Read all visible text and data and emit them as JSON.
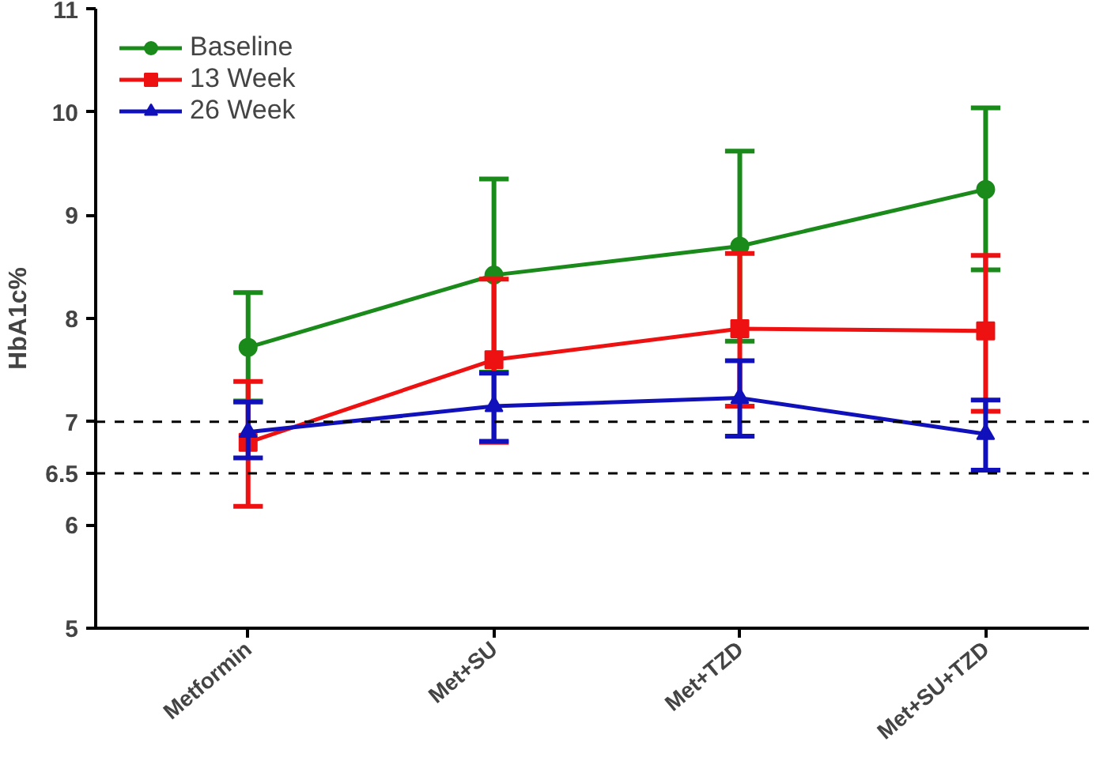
{
  "chart_data": {
    "type": "line",
    "ylabel": "HbA1c%",
    "categories": [
      "Metformin",
      "Met+SU",
      "Met+TZD",
      "Met+SU+TZD"
    ],
    "series": [
      {
        "name": "Baseline",
        "color": "#1a8a1a",
        "marker": "circle",
        "values": [
          7.72,
          8.42,
          8.7,
          9.25
        ],
        "errors": [
          [
            7.2,
            8.25
          ],
          [
            7.48,
            9.35
          ],
          [
            7.78,
            9.62
          ],
          [
            8.47,
            10.04
          ]
        ]
      },
      {
        "name": "13 Week",
        "color": "#ee1111",
        "marker": "square",
        "values": [
          6.8,
          7.6,
          7.9,
          7.88
        ],
        "errors": [
          [
            6.18,
            7.39
          ],
          [
            6.8,
            8.38
          ],
          [
            7.15,
            8.63
          ],
          [
            7.1,
            8.61
          ]
        ]
      },
      {
        "name": "26 Week",
        "color": "#1111bb",
        "marker": "triangle",
        "values": [
          6.9,
          7.15,
          7.23,
          6.88
        ],
        "errors": [
          [
            6.65,
            7.19
          ],
          [
            6.81,
            7.47
          ],
          [
            6.86,
            7.59
          ],
          [
            6.53,
            7.21
          ]
        ]
      }
    ],
    "ylim": [
      5,
      11
    ],
    "yticks": [
      5,
      6,
      6.5,
      7,
      8,
      9,
      10,
      11
    ],
    "ref_lines": [
      {
        "axis": "y",
        "value": 7,
        "line_style": "dashed",
        "color": "#000000"
      },
      {
        "axis": "y",
        "value": 6.5,
        "line_style": "dashed",
        "color": "#000000"
      }
    ],
    "grid": false,
    "legend": "top left",
    "line_style": "solid"
  }
}
